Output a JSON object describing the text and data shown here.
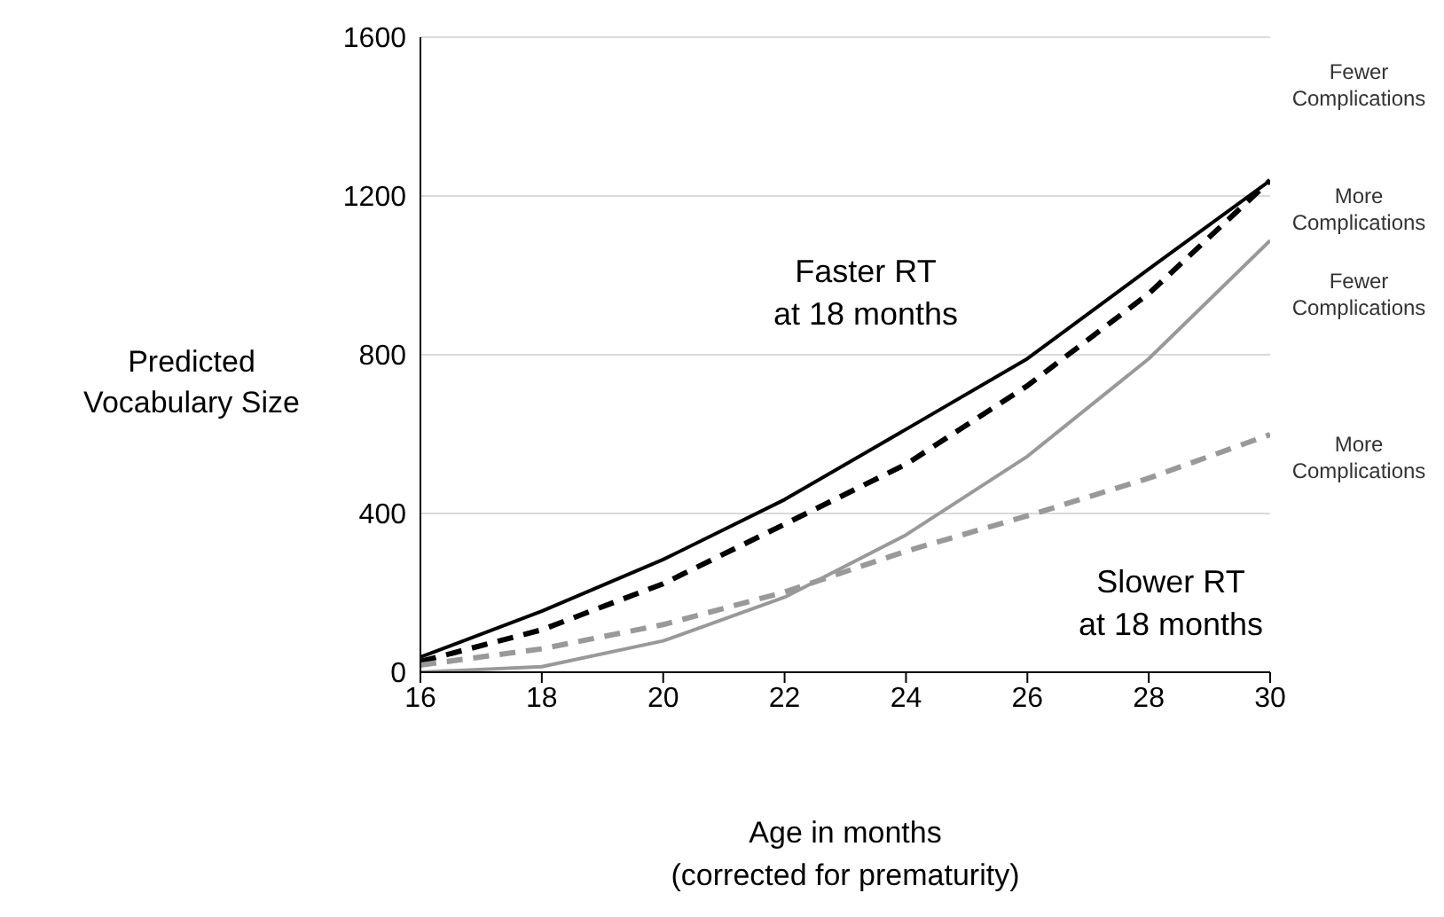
{
  "chart_data": {
    "type": "line",
    "xlabel": "Age in months\n(corrected for prematurity)",
    "ylabel": "Predicted\nVocabulary Size",
    "x": [
      16,
      18,
      20,
      22,
      24,
      26,
      28,
      30
    ],
    "xlim": [
      16,
      30
    ],
    "xticks": [
      16,
      18,
      20,
      22,
      24,
      26,
      28,
      30
    ],
    "ylim": [
      0,
      1600
    ],
    "yticks": [
      0,
      400,
      800,
      1200,
      1600
    ],
    "grid": "y",
    "marker": "none",
    "series": [
      {
        "name": "Fewer\nComplications",
        "color": "#000000",
        "line_style": "solid",
        "values": [
          38,
          154,
          284,
          435,
          612,
          790,
          1016,
          1239
        ]
      },
      {
        "name": "More\nComplications",
        "color": "#000000",
        "line_style": "dashed",
        "values": [
          27,
          107,
          223,
          373,
          524,
          722,
          954,
          1239
        ]
      },
      {
        "name": "Fewer\nComplications",
        "color": "#999999",
        "line_style": "solid",
        "values": [
          0,
          14,
          79,
          189,
          346,
          544,
          790,
          1088
        ]
      },
      {
        "name": "More\nComplications",
        "color": "#999999",
        "line_style": "dashed",
        "values": [
          18,
          59,
          120,
          202,
          305,
          394,
          489,
          599
        ]
      }
    ],
    "annotations": [
      "Faster RT\nat 18 months",
      "Slower RT\nat 18 months"
    ]
  }
}
